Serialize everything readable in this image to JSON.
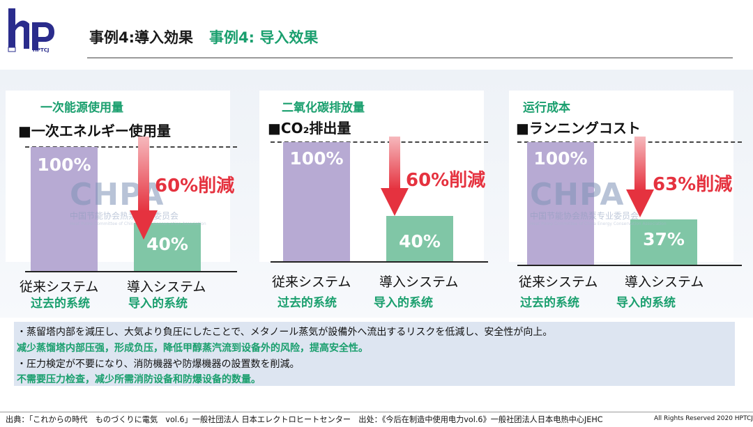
{
  "header": {
    "logo_text": "HPTCJ",
    "title_jp": "事例4:導入効果",
    "title_cn": "事例4:  导入效果"
  },
  "watermark": {
    "brand": "CHPA",
    "org_cn": "中国节能协会热泵专业委员会",
    "org_en": "Heat Pump Committee of China Energy Conservation Association"
  },
  "panels": [
    {
      "title_cn": "一次能源使用量",
      "title_jp": "■一次エネルギー使用量",
      "old_pct": "100%",
      "new_pct": "40%",
      "reduction": "60%削減",
      "reduction_value": 60,
      "old_label_jp": "従来システム",
      "old_label_cn": "过去的系统",
      "new_label_jp": "導入システム",
      "new_label_cn": "导入的系统"
    },
    {
      "title_cn": "二氧化碳排放量",
      "title_jp": "■CO₂排出量",
      "old_pct": "100%",
      "new_pct": "40%",
      "reduction": "60%削減",
      "reduction_value": 60,
      "old_label_jp": "従来システム",
      "old_label_cn": "过去的系统",
      "new_label_jp": "導入システム",
      "new_label_cn": "导入的系统"
    },
    {
      "title_cn": "运行成本",
      "title_jp": "■ランニングコスト",
      "old_pct": "100%",
      "new_pct": "37%",
      "reduction": "63%削減",
      "reduction_value": 63,
      "old_label_jp": "従来システム",
      "old_label_cn": "过去的系统",
      "new_label_jp": "導入システム",
      "new_label_cn": "导入的系统"
    }
  ],
  "notes": [
    {
      "lang": "jp",
      "text": "・蒸留塔内部を減圧し、大気より負圧にしたことで、メタノール蒸気が設備外へ流出するリスクを低減し、安全性が向上。"
    },
    {
      "lang": "cn",
      "text": "减少蒸馏塔内部压强，形成负压，降低甲醇蒸汽流到设备外的风险，提高安全性。"
    },
    {
      "lang": "jp",
      "text": "・圧力検定が不要になり、消防機器や防爆機器の設置数を削減。"
    },
    {
      "lang": "cn",
      "text": "不需要压力检查，减少所需消防设备和防爆设备的数量。"
    }
  ],
  "footer": {
    "source": "出典：「これからの時代　ものづくりに電気　vol.6」一般社団法人 日本エレクトロヒートセンター　出处：《今后在制造中使用电力vol.6》一般社团法人日本电热中心JEHC",
    "rights": "All Rights Reserved  2020  HPTCJ"
  },
  "colors": {
    "accent_green": "#1a9f6e",
    "old_bar": "#b7aad3",
    "new_bar": "#80c6a6",
    "reduction_red": "#e5323f"
  }
}
